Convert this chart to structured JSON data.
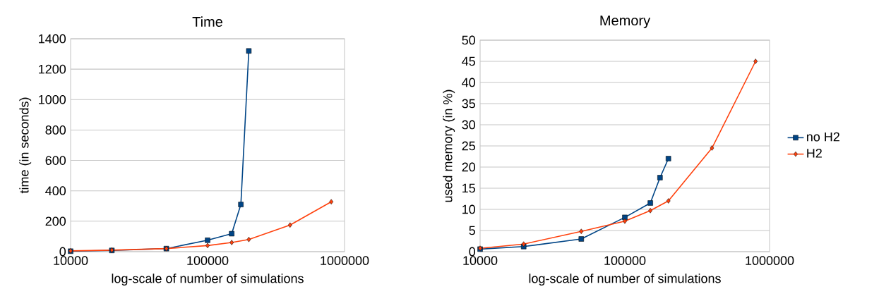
{
  "chart_data": [
    {
      "type": "line",
      "title": "Time",
      "xlabel": "log-scale of number of simulations",
      "ylabel": "time (in seconds)",
      "log": "x",
      "grid": "y",
      "legend": false,
      "xlim": [
        10000,
        1000000
      ],
      "xticks": [
        10000,
        100000,
        1000000
      ],
      "ylim": [
        0,
        1400
      ],
      "yticks": [
        0,
        200,
        400,
        600,
        800,
        1000,
        1200,
        1400
      ],
      "series": [
        {
          "color": "#004586",
          "marker": "square",
          "x": [
            10000,
            20000,
            50000,
            100000,
            150000,
            175000,
            200000
          ],
          "values": [
            3,
            8,
            20,
            75,
            118,
            310,
            1320
          ]
        },
        {
          "color": "#ff420e",
          "marker": "diamond",
          "x": [
            10000,
            20000,
            50000,
            100000,
            150000,
            200000,
            400000,
            800000
          ],
          "values": [
            5,
            10,
            20,
            40,
            60,
            80,
            175,
            328
          ]
        }
      ]
    },
    {
      "type": "line",
      "title": "Memory",
      "xlabel": "log-scale of number of simulations",
      "ylabel": "used memory (in %)",
      "log": "x",
      "grid": "y",
      "legend": "right",
      "xlim": [
        10000,
        1000000
      ],
      "xticks": [
        10000,
        100000,
        1000000
      ],
      "ylim": [
        0,
        50
      ],
      "yticks": [
        0,
        5,
        10,
        15,
        20,
        25,
        30,
        35,
        40,
        45,
        50
      ],
      "series": [
        {
          "name": "no H2",
          "color": "#004586",
          "marker": "square",
          "x": [
            10000,
            20000,
            50000,
            100000,
            150000,
            175000,
            200000
          ],
          "values": [
            0.6,
            1.2,
            3,
            8.1,
            11.5,
            17.5,
            22
          ]
        },
        {
          "name": "H2",
          "color": "#ff420e",
          "marker": "diamond",
          "x": [
            10000,
            20000,
            50000,
            100000,
            150000,
            200000,
            400000,
            800000
          ],
          "values": [
            0.8,
            1.8,
            4.8,
            7.2,
            9.7,
            12,
            24.5,
            45
          ]
        }
      ]
    }
  ]
}
